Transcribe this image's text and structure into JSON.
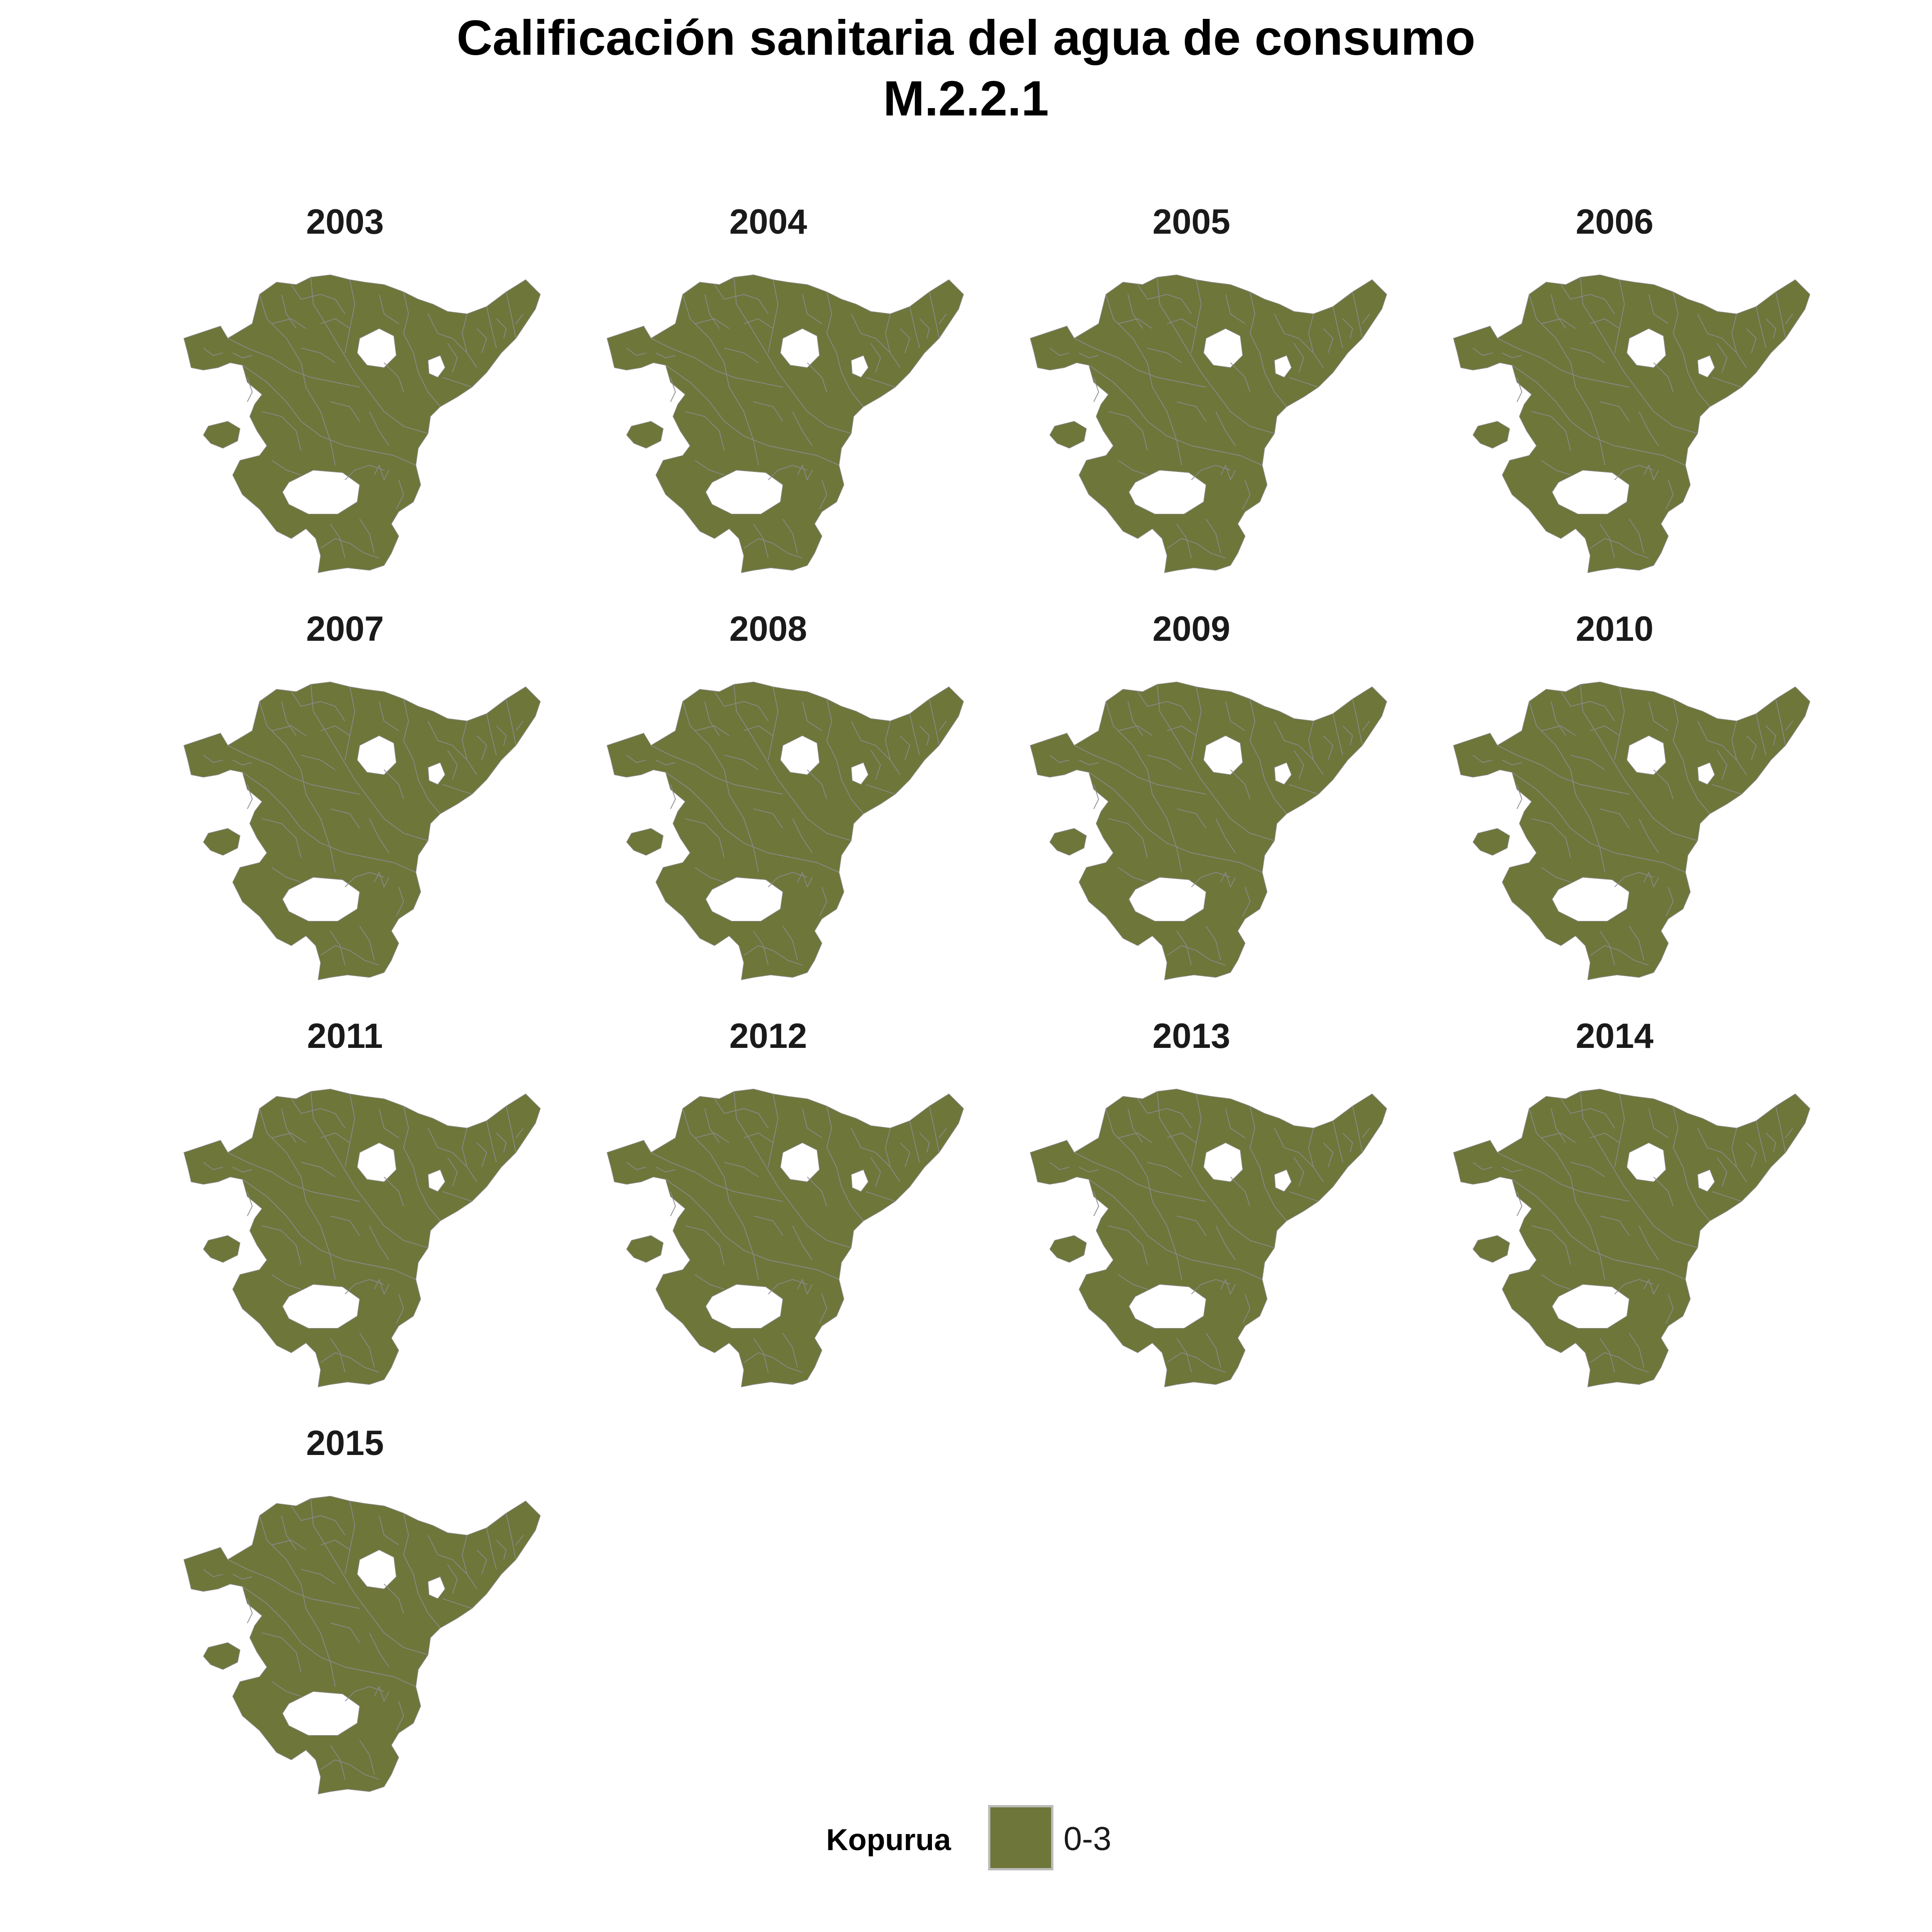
{
  "title": {
    "line1": "Calificación sanitaria del agua de consumo",
    "line2": "M.2.2.1"
  },
  "map": {
    "fill_color": "#6E763A",
    "border_color": "#8A8A8A",
    "panels": [
      {
        "label": "2003",
        "category": "0-3"
      },
      {
        "label": "2004",
        "category": "0-3"
      },
      {
        "label": "2005",
        "category": "0-3"
      },
      {
        "label": "2006",
        "category": "0-3"
      },
      {
        "label": "2007",
        "category": "0-3"
      },
      {
        "label": "2008",
        "category": "0-3"
      },
      {
        "label": "2009",
        "category": "0-3"
      },
      {
        "label": "2010",
        "category": "0-3"
      },
      {
        "label": "2011",
        "category": "0-3"
      },
      {
        "label": "2012",
        "category": "0-3"
      },
      {
        "label": "2013",
        "category": "0-3"
      },
      {
        "label": "2014",
        "category": "0-3"
      },
      {
        "label": "2015",
        "category": "0-3"
      }
    ]
  },
  "legend": {
    "title": "Kopurua",
    "items": [
      {
        "label": "0-3",
        "color": "#6E763A"
      }
    ]
  }
}
